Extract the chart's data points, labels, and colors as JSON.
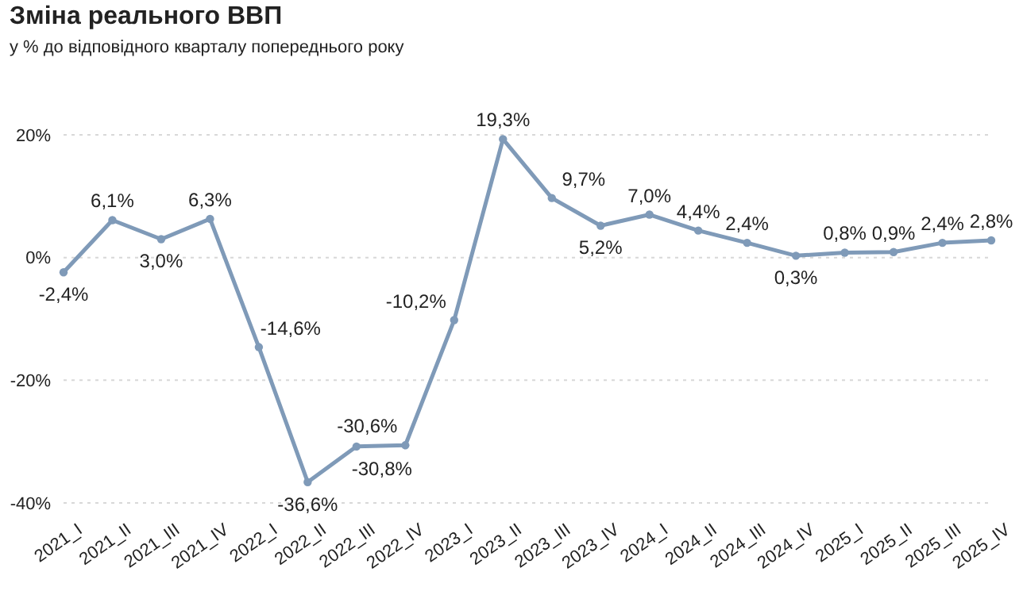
{
  "chart_data": {
    "type": "line",
    "title": "Зміна реального ВВП",
    "subtitle": "у % до відповідного кварталу попереднього року",
    "categories": [
      "2021_I",
      "2021_II",
      "2021_III",
      "2021_IV",
      "2022_I",
      "2022_II",
      "2022_III",
      "2022_IV",
      "2023_I",
      "2023_II",
      "2023_III",
      "2023_IV",
      "2024_I",
      "2024_II",
      "2024_III",
      "2024_IV",
      "2025_I",
      "2025_II",
      "2025_III",
      "2025_IV"
    ],
    "values": [
      -2.4,
      6.1,
      3.0,
      6.3,
      -14.6,
      -36.6,
      -30.8,
      -30.6,
      -10.2,
      19.3,
      9.7,
      5.2,
      7.0,
      4.4,
      2.4,
      0.3,
      0.8,
      0.9,
      2.4,
      2.8
    ],
    "value_labels": [
      "-2,4%",
      "6,1%",
      "3,0%",
      "6,3%",
      "-14,6%",
      "-36,6%",
      "-30,8%",
      "-30,6%",
      "-10,2%",
      "19,3%",
      "9,7%",
      "5,2%",
      "7,0%",
      "4,4%",
      "2,4%",
      "0,3%",
      "0,8%",
      "0,9%",
      "2,4%",
      "2,8%"
    ],
    "color": "#7f9ab8",
    "marker": "circle",
    "line_style": "solid",
    "grid": "y",
    "ylim": [
      -40,
      20
    ],
    "yticks": [
      {
        "value": -40,
        "label": "-40%"
      },
      {
        "value": -20,
        "label": "-20%"
      },
      {
        "value": 0,
        "label": "0%"
      },
      {
        "value": 20,
        "label": "20%"
      }
    ]
  }
}
